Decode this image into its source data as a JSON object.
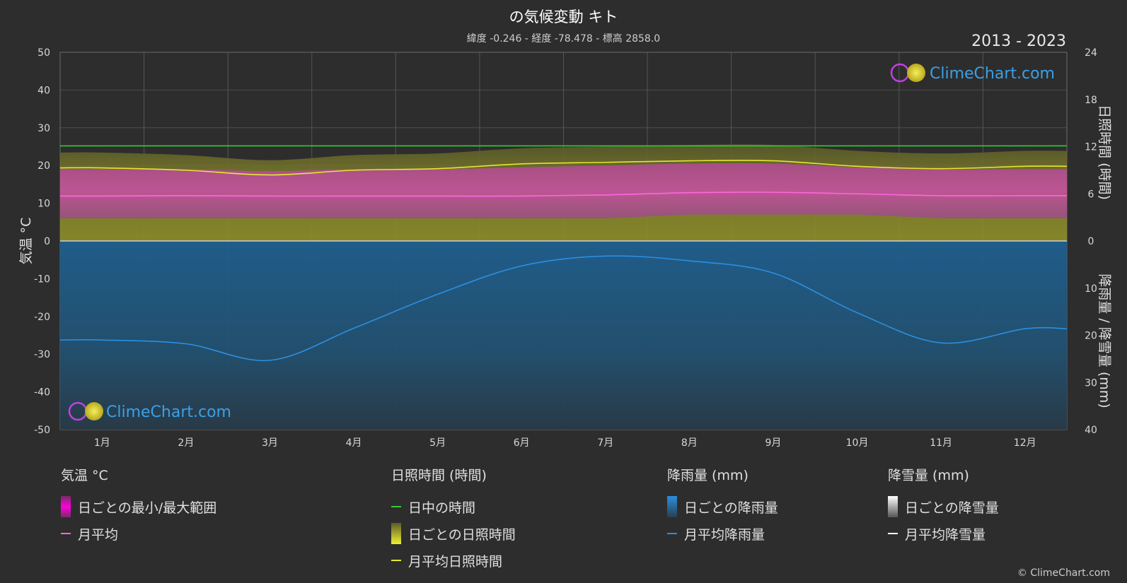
{
  "header": {
    "title": "の気候変動 キト",
    "subtitle": "緯度 -0.246 - 経度 -78.478 - 標高 2858.0",
    "years": "2013 - 2023"
  },
  "watermark": "ClimeChart.com",
  "credit": "© ClimeChart.com",
  "colors": {
    "background": "#2d2d2d",
    "temp_range": "#d63a9c",
    "temp_avg": "#ff66e0",
    "daylight": "#33cc33",
    "sunshine_fill": "#8a8a2a",
    "sunshine_avg": "#e6e632",
    "rain_fill": "#1e5a86",
    "rain_avg": "#2a8fe0",
    "snow": "#ffffff"
  },
  "chart_data": {
    "type": "line",
    "categories": [
      "1月",
      "2月",
      "3月",
      "4月",
      "5月",
      "6月",
      "7月",
      "8月",
      "9月",
      "10月",
      "11月",
      "12月"
    ],
    "axes": {
      "left": {
        "label": "気温 °C",
        "ylim": [
          -50,
          50
        ],
        "ticks": [
          50,
          40,
          30,
          20,
          10,
          0,
          -10,
          -20,
          -30,
          -40,
          -50
        ]
      },
      "right_top": {
        "label": "日照時間 (時間)",
        "ylim": [
          0,
          24
        ],
        "ticks": [
          24,
          18,
          12,
          6,
          0
        ]
      },
      "right_bottom": {
        "label": "降雨量 / 降雪量 (mm)",
        "ylim": [
          0,
          40
        ],
        "ticks": [
          0,
          10,
          20,
          30,
          40
        ]
      }
    },
    "grid": true,
    "series": [
      {
        "name": "月平均",
        "axis": "left",
        "values": [
          11.9,
          12.0,
          11.9,
          11.9,
          11.9,
          11.9,
          12.2,
          12.8,
          12.9,
          12.5,
          12.0,
          12.0
        ]
      },
      {
        "name": "日中の時間",
        "axis": "right_top",
        "values": [
          12.1,
          12.1,
          12.1,
          12.1,
          12.1,
          12.1,
          12.1,
          12.1,
          12.1,
          12.1,
          12.1,
          12.1
        ]
      },
      {
        "name": "月平均日照時間",
        "axis": "right_top",
        "values": [
          9.3,
          9.0,
          8.4,
          9.0,
          9.2,
          9.8,
          10.0,
          10.2,
          10.2,
          9.5,
          9.2,
          9.5
        ]
      },
      {
        "name": "月平均降雨量",
        "axis": "right_bottom",
        "values": [
          21.0,
          21.8,
          25.3,
          18.5,
          11.3,
          5.3,
          3.2,
          4.2,
          6.8,
          15.2,
          21.6,
          18.6
        ]
      },
      {
        "name": "月平均降雪量",
        "axis": "right_bottom",
        "values": [
          0,
          0,
          0,
          0,
          0,
          0,
          0,
          0,
          0,
          0,
          0,
          0
        ]
      }
    ],
    "temp_band": {
      "min": [
        6,
        6,
        6,
        6,
        6,
        6,
        6,
        7,
        7,
        7,
        6,
        6
      ],
      "max": [
        19,
        19,
        18.5,
        19,
        19,
        19.5,
        20,
        20.5,
        20.5,
        19.5,
        19,
        19
      ]
    }
  },
  "legend": {
    "temperature": {
      "title": "気温 °C",
      "items": [
        "日ごとの最小/最大範囲",
        "月平均"
      ]
    },
    "sunshine": {
      "title": "日照時間 (時間)",
      "items": [
        "日中の時間",
        "日ごとの日照時間",
        "月平均日照時間"
      ]
    },
    "rain": {
      "title": "降雨量 (mm)",
      "items": [
        "日ごとの降雨量",
        "月平均降雨量"
      ]
    },
    "snow": {
      "title": "降雪量 (mm)",
      "items": [
        "日ごとの降雪量",
        "月平均降雪量"
      ]
    }
  }
}
